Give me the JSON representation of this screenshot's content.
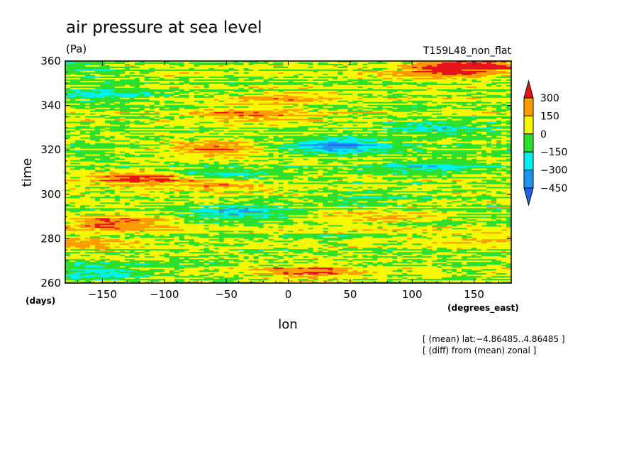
{
  "chart_data": {
    "type": "heatmap",
    "title": "air pressure at sea level",
    "units": "(Pa)",
    "experiment": "T159L48_non_flat",
    "xlabel": "lon",
    "x_unit": "(degrees_east)",
    "ylabel": "time",
    "y_unit": "(days)",
    "xlim": [
      -180,
      180
    ],
    "ylim": [
      260,
      360
    ],
    "x_ticks": [
      -150,
      -100,
      -50,
      0,
      50,
      100,
      150
    ],
    "x_tick_labels": [
      "−150",
      "−100",
      "−50",
      "0",
      "50",
      "100",
      "150"
    ],
    "y_ticks": [
      260,
      280,
      300,
      320,
      340,
      360
    ],
    "y_tick_labels": [
      "260",
      "280",
      "300",
      "320",
      "340",
      "360"
    ],
    "notes": [
      "[ (mean) lat:−4.86485..4.86485 ]",
      "[ (diff) from (mean) zonal ]"
    ],
    "colorbar": {
      "levels": [
        300,
        150,
        0,
        -150,
        -300,
        -450
      ],
      "level_labels": [
        "300",
        "150",
        "0",
        "−150",
        "−300",
        "−450"
      ],
      "colors": [
        "#e8141c",
        "#ff9d00",
        "#f8f800",
        "#2ee02e",
        "#00f0f0",
        "#1e96f0",
        "#1e64f0"
      ],
      "extend": "both"
    },
    "anomaly_features": [
      {
        "lon": -60,
        "time": 320.5,
        "value": 330
      },
      {
        "lon": -120,
        "time": 307,
        "value": 320
      },
      {
        "lon": -140,
        "time": 287,
        "value": 310
      },
      {
        "lon": 150,
        "time": 358,
        "value": 320
      },
      {
        "lon": 130,
        "time": 355,
        "value": 230
      },
      {
        "lon": -30,
        "time": 336,
        "value": 250
      },
      {
        "lon": 20,
        "time": 265,
        "value": 250
      },
      {
        "lon": -50,
        "time": 305,
        "value": 270
      },
      {
        "lon": -170,
        "time": 278,
        "value": 200
      },
      {
        "lon": 160,
        "time": 280,
        "value": 150
      },
      {
        "lon": 70,
        "time": 290,
        "value": 150
      },
      {
        "lon": 0,
        "time": 343,
        "value": 150
      },
      {
        "lon": 40,
        "time": 322,
        "value": -380
      },
      {
        "lon": -50,
        "time": 308,
        "value": -300
      },
      {
        "lon": -40,
        "time": 292,
        "value": -250
      },
      {
        "lon": 110,
        "time": 312,
        "value": -220
      },
      {
        "lon": -150,
        "time": 265,
        "value": -250
      },
      {
        "lon": -150,
        "time": 345,
        "value": -230
      },
      {
        "lon": 120,
        "time": 330,
        "value": -200
      },
      {
        "lon": 60,
        "time": 298,
        "value": -150
      },
      {
        "lon": -170,
        "time": 357,
        "value": -150
      }
    ]
  }
}
